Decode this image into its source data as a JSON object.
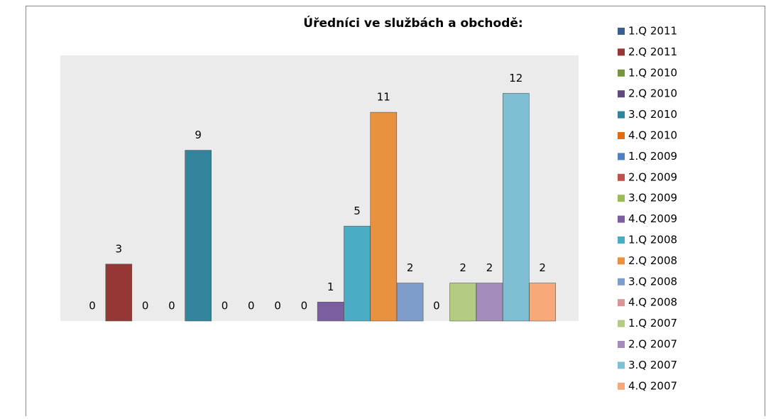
{
  "chart_data": {
    "type": "bar",
    "title": "Úředníci ve službách a obchodě:",
    "ylim": [
      0,
      14
    ],
    "series": [
      {
        "name": "1.Q 2011",
        "color": "#3A5F8F",
        "values": [
          0
        ]
      },
      {
        "name": "2.Q 2011",
        "color": "#953735",
        "values": [
          3
        ]
      },
      {
        "name": "1.Q 2010",
        "color": "#77933C",
        "values": [
          0
        ]
      },
      {
        "name": "2.Q 2010",
        "color": "#604A7B",
        "values": [
          0
        ]
      },
      {
        "name": "3.Q 2010",
        "color": "#31849B",
        "values": [
          9
        ]
      },
      {
        "name": "4.Q 2010",
        "color": "#E46C0A",
        "values": [
          0
        ]
      },
      {
        "name": "1.Q 2009",
        "color": "#4F81BD",
        "values": [
          0
        ]
      },
      {
        "name": "2.Q 2009",
        "color": "#C0504D",
        "values": [
          0
        ]
      },
      {
        "name": "3.Q 2009",
        "color": "#9BBB59",
        "values": [
          0
        ]
      },
      {
        "name": "4.Q 2009",
        "color": "#7B5EA0",
        "values": [
          1
        ]
      },
      {
        "name": "1.Q 2008",
        "color": "#4BACC6",
        "values": [
          5
        ]
      },
      {
        "name": "2.Q 2008",
        "color": "#E8913F",
        "values": [
          11
        ]
      },
      {
        "name": "3.Q 2008",
        "color": "#7F9DCB",
        "values": [
          2
        ]
      },
      {
        "name": "4.Q 2008",
        "color": "#D99694",
        "values": [
          0
        ]
      },
      {
        "name": "1.Q 2007",
        "color": "#B3CC82",
        "values": [
          2
        ]
      },
      {
        "name": "2.Q 2007",
        "color": "#A28DBC",
        "values": [
          2
        ]
      },
      {
        "name": "3.Q 2007",
        "color": "#7FBFD3",
        "values": [
          12
        ]
      },
      {
        "name": "4.Q 2007",
        "color": "#F8A97A",
        "values": [
          2
        ]
      }
    ]
  }
}
